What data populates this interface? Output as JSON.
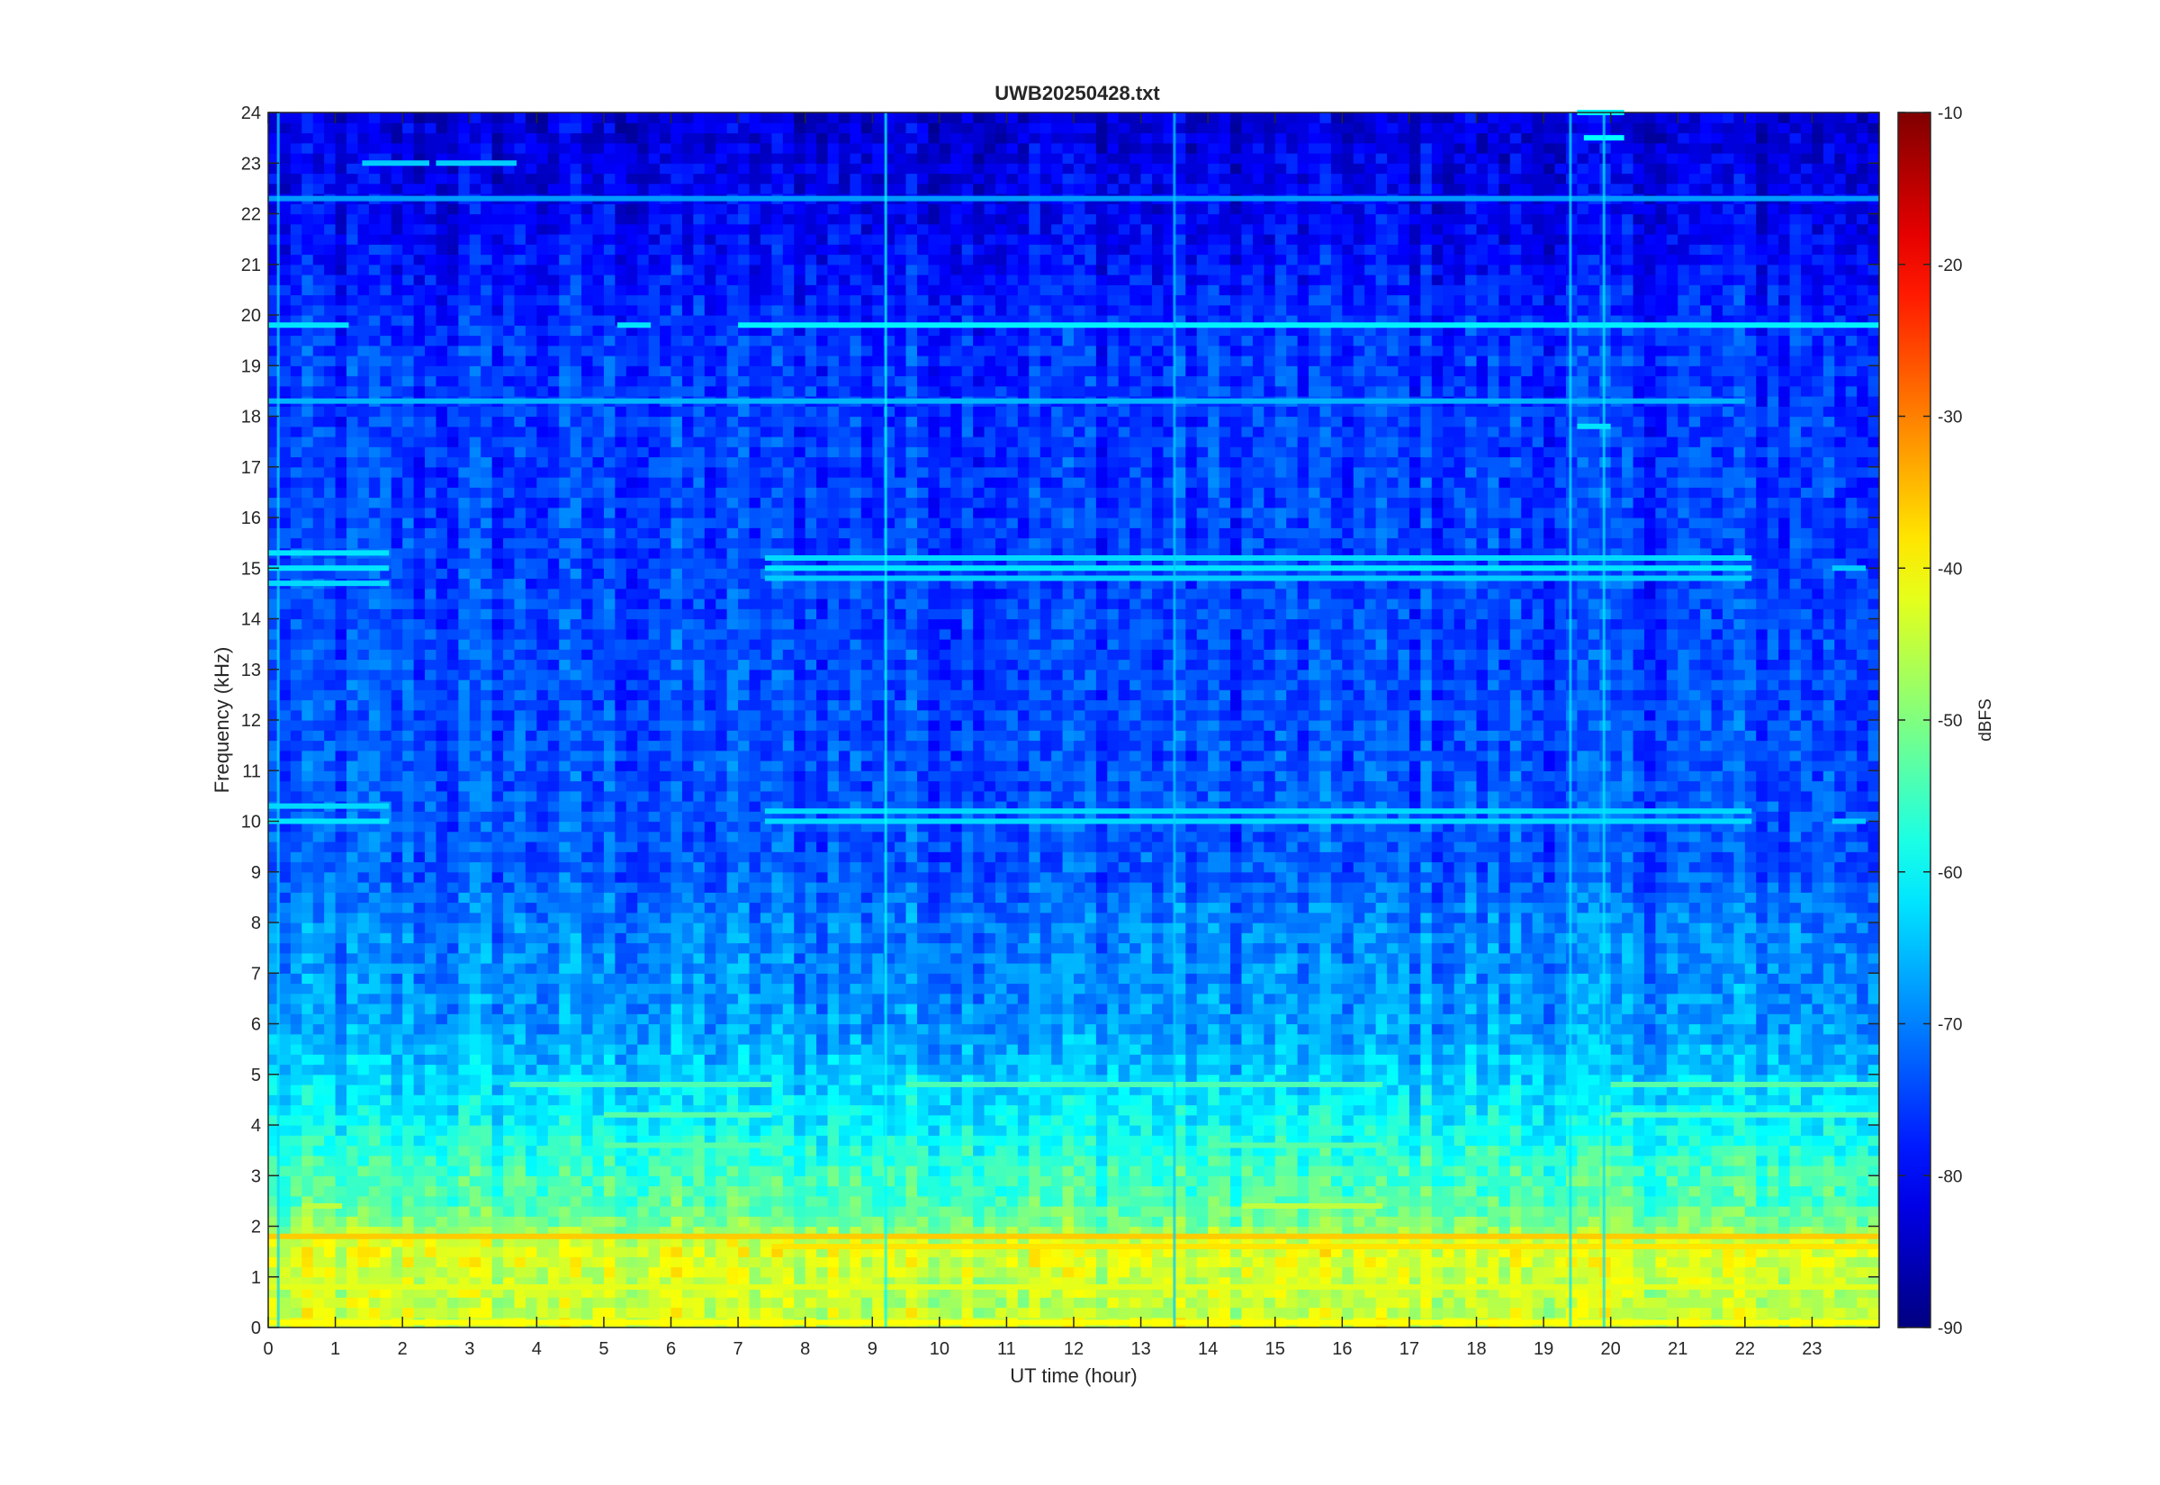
{
  "chart_data": {
    "type": "heatmap",
    "title": "UWB20250428.txt",
    "xlabel": "UT time (hour)",
    "ylabel": "Frequency (kHz)",
    "xlim": [
      0,
      24
    ],
    "ylim": [
      0,
      24
    ],
    "x_ticks": [
      0,
      1,
      2,
      3,
      4,
      5,
      6,
      7,
      8,
      9,
      10,
      11,
      12,
      13,
      14,
      15,
      16,
      17,
      18,
      19,
      20,
      21,
      22,
      23
    ],
    "y_ticks": [
      0,
      1,
      2,
      3,
      4,
      5,
      6,
      7,
      8,
      9,
      10,
      11,
      12,
      13,
      14,
      15,
      16,
      17,
      18,
      19,
      20,
      21,
      22,
      23,
      24
    ],
    "colorbar": {
      "label": "dBFS",
      "colormap": "jet",
      "clim": [
        -90,
        -10
      ],
      "ticks": [
        -10,
        -20,
        -30,
        -40,
        -50,
        -60,
        -70,
        -80,
        -90
      ]
    },
    "background_level": -72,
    "frequency_profile": [
      {
        "f": 0.0,
        "level": -43
      },
      {
        "f": 0.5,
        "level": -45
      },
      {
        "f": 1.0,
        "level": -44
      },
      {
        "f": 1.6,
        "level": -42
      },
      {
        "f": 2.0,
        "level": -50
      },
      {
        "f": 2.5,
        "level": -54
      },
      {
        "f": 3.0,
        "level": -55
      },
      {
        "f": 4.0,
        "level": -60
      },
      {
        "f": 5.0,
        "level": -64
      },
      {
        "f": 6.0,
        "level": -68
      },
      {
        "f": 8.0,
        "level": -70
      },
      {
        "f": 9.0,
        "level": -73
      },
      {
        "f": 12.0,
        "level": -74
      },
      {
        "f": 16.0,
        "level": -75
      },
      {
        "f": 19.5,
        "level": -76
      },
      {
        "f": 20.5,
        "level": -78
      },
      {
        "f": 21.5,
        "level": -80
      },
      {
        "f": 24.0,
        "level": -83
      }
    ],
    "tones": [
      {
        "f": 19.8,
        "t_start": 0.0,
        "t_end": 1.2,
        "level": -62
      },
      {
        "f": 19.8,
        "t_start": 5.2,
        "t_end": 5.7,
        "level": -62
      },
      {
        "f": 19.8,
        "t_start": 7.0,
        "t_end": 24.0,
        "level": -61
      },
      {
        "f": 18.3,
        "t_start": 0.0,
        "t_end": 22.0,
        "level": -66
      },
      {
        "f": 22.3,
        "t_start": 0.0,
        "t_end": 24.0,
        "level": -68
      },
      {
        "f": 23.0,
        "t_start": 1.4,
        "t_end": 2.4,
        "level": -64
      },
      {
        "f": 23.0,
        "t_start": 2.5,
        "t_end": 3.7,
        "level": -64
      },
      {
        "f": 15.3,
        "t_start": 0.0,
        "t_end": 1.8,
        "level": -62
      },
      {
        "f": 15.0,
        "t_start": 0.0,
        "t_end": 1.8,
        "level": -62
      },
      {
        "f": 14.7,
        "t_start": 0.0,
        "t_end": 1.8,
        "level": -63
      },
      {
        "f": 10.3,
        "t_start": 0.0,
        "t_end": 1.8,
        "level": -63
      },
      {
        "f": 10.0,
        "t_start": 0.0,
        "t_end": 1.8,
        "level": -62
      },
      {
        "f": 15.2,
        "t_start": 7.4,
        "t_end": 22.1,
        "level": -63
      },
      {
        "f": 15.0,
        "t_start": 7.4,
        "t_end": 22.1,
        "level": -62
      },
      {
        "f": 14.8,
        "t_start": 7.4,
        "t_end": 22.1,
        "level": -64
      },
      {
        "f": 10.2,
        "t_start": 7.4,
        "t_end": 22.1,
        "level": -63
      },
      {
        "f": 10.0,
        "t_start": 7.4,
        "t_end": 22.1,
        "level": -63
      },
      {
        "f": 15.0,
        "t_start": 23.3,
        "t_end": 23.8,
        "level": -64
      },
      {
        "f": 10.0,
        "t_start": 23.3,
        "t_end": 23.8,
        "level": -64
      },
      {
        "f": 23.5,
        "t_start": 19.6,
        "t_end": 20.2,
        "level": -60
      },
      {
        "f": 24.0,
        "t_start": 19.5,
        "t_end": 20.2,
        "level": -60
      },
      {
        "f": 17.8,
        "t_start": 19.5,
        "t_end": 20.0,
        "level": -62
      },
      {
        "f": 4.8,
        "t_start": 3.6,
        "t_end": 7.5,
        "level": -54
      },
      {
        "f": 4.8,
        "t_start": 9.5,
        "t_end": 16.6,
        "level": -54
      },
      {
        "f": 4.8,
        "t_start": 20.0,
        "t_end": 24.0,
        "level": -53
      },
      {
        "f": 4.2,
        "t_start": 5.0,
        "t_end": 7.5,
        "level": -53
      },
      {
        "f": 4.2,
        "t_start": 20.0,
        "t_end": 24.0,
        "level": -53
      },
      {
        "f": 3.6,
        "t_start": 5.0,
        "t_end": 7.5,
        "level": -53
      },
      {
        "f": 3.6,
        "t_start": 14.0,
        "t_end": 16.6,
        "level": -53
      },
      {
        "f": 2.4,
        "t_start": 14.5,
        "t_end": 16.6,
        "level": -45
      },
      {
        "f": 2.4,
        "t_start": 0.5,
        "t_end": 1.1,
        "level": -45
      },
      {
        "f": 1.8,
        "t_start": 0.0,
        "t_end": 24.0,
        "level": -36
      },
      {
        "f": 1.6,
        "t_start": 7.5,
        "t_end": 24.0,
        "level": -38
      },
      {
        "f": 0.8,
        "t_start": 0.0,
        "t_end": 24.0,
        "level": -42
      },
      {
        "f": 0.1,
        "t_start": 0.0,
        "t_end": 24.0,
        "level": -40
      }
    ],
    "bursts": [
      {
        "t": 0.15,
        "level": -63
      },
      {
        "t": 9.2,
        "level": -60
      },
      {
        "t": 13.5,
        "level": -64
      },
      {
        "t": 19.4,
        "level": -62
      },
      {
        "t": 19.9,
        "level": -62
      }
    ]
  }
}
